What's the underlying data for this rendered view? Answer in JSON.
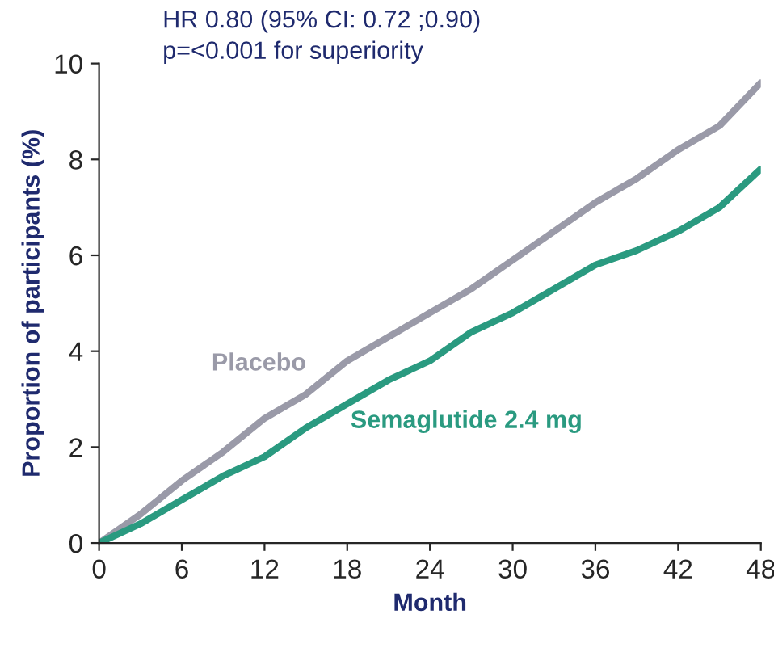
{
  "chart_data": {
    "type": "line",
    "xlabel": "Month",
    "ylabel": "Proportion of participants (%)",
    "annotations": [
      "HR 0.80 (95% CI: 0.72 ;0.90)",
      "p=<0.001 for superiority"
    ],
    "x": [
      0,
      3,
      6,
      9,
      12,
      15,
      18,
      21,
      24,
      27,
      30,
      33,
      36,
      39,
      42,
      45,
      48
    ],
    "series": [
      {
        "name": "Placebo",
        "color": "#9a9aa8",
        "values": [
          0,
          0.6,
          1.3,
          1.9,
          2.6,
          3.1,
          3.8,
          4.3,
          4.8,
          5.3,
          5.9,
          6.5,
          7.1,
          7.6,
          8.2,
          8.7,
          9.6
        ]
      },
      {
        "name": "Semaglutide 2.4 mg",
        "color": "#2a9a80",
        "values": [
          0,
          0.4,
          0.9,
          1.4,
          1.8,
          2.4,
          2.9,
          3.4,
          3.8,
          4.4,
          4.8,
          5.3,
          5.8,
          6.1,
          6.5,
          7.0,
          7.8
        ]
      }
    ],
    "xlim": [
      0,
      48
    ],
    "xticks": [
      0,
      6,
      12,
      18,
      24,
      30,
      36,
      42,
      48
    ],
    "ylim": [
      0,
      10
    ],
    "yticks": [
      0,
      2,
      4,
      6,
      8,
      10
    ],
    "grid": false,
    "legend": false,
    "marker": "none",
    "line_style": "solid"
  }
}
